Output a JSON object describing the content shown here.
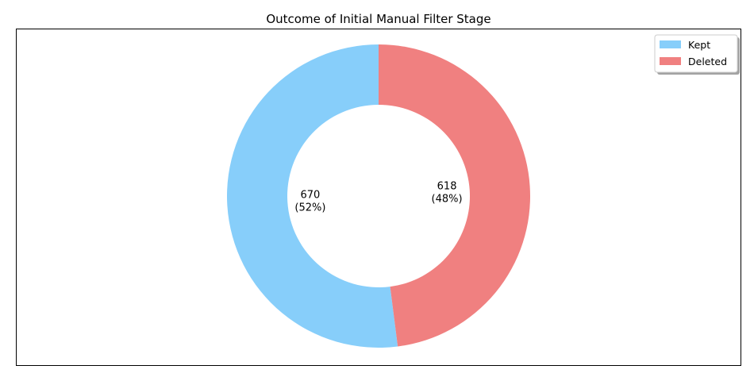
{
  "chart_data": {
    "type": "pie",
    "title": "Outcome of Initial Manual Filter Stage",
    "donut": true,
    "start": "top",
    "direction": "clockwise",
    "slices": [
      {
        "label": "Kept",
        "value": 670,
        "percent_label": "(52%)",
        "color": "#87CEFA"
      },
      {
        "label": "Deleted",
        "value": 618,
        "percent_label": "(48%)",
        "color": "#F08080"
      }
    ],
    "legend": {
      "position": "top-right",
      "shadow": true
    }
  }
}
